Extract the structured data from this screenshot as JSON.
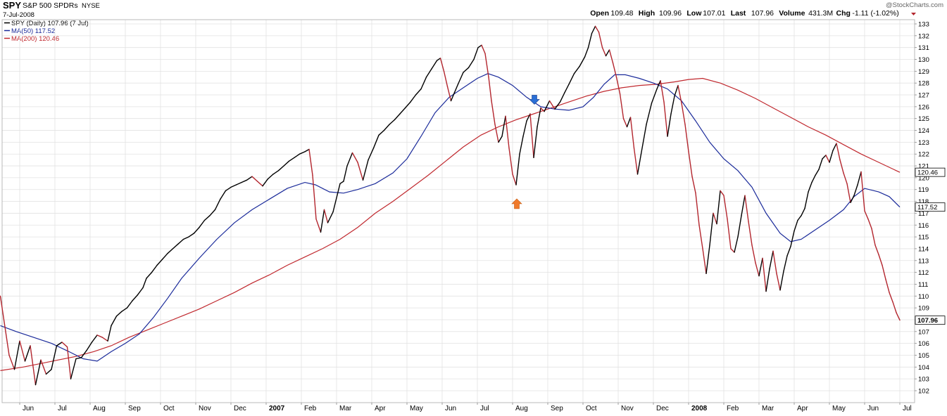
{
  "header": {
    "symbol": "SPY",
    "name": "S&P 500 SPDRs",
    "exchange": "NYSE",
    "date": "7-Jul-2008",
    "credit": "@StockCharts.com",
    "ohlc": [
      {
        "label": "Open",
        "value": "109.48"
      },
      {
        "label": "High",
        "value": "109.96"
      },
      {
        "label": "Low",
        "value": "107.01"
      },
      {
        "label": "Last",
        "value": "107.96"
      },
      {
        "label": "Volume",
        "value": "431.3M"
      },
      {
        "label": "Chg",
        "value": "-1.11 (-1.02%)"
      }
    ]
  },
  "legend": [
    {
      "text": "SPY (Daily) 107.96 (7 Jul)",
      "color": "#000000"
    },
    {
      "text": "MA(50) 117.52",
      "color": "#1a2a9a"
    },
    {
      "text": "MA(200) 120.46",
      "color": "#c0282e"
    }
  ],
  "colors": {
    "up": "#000000",
    "down": "#b3262e",
    "ma50": "#1a2a9a",
    "ma200": "#c0282e",
    "grid": "#e2e2e2",
    "arrow_up": "#f07a2a",
    "arrow_down": "#2a6fd6"
  },
  "chart_data": {
    "type": "line",
    "ylim": [
      101,
      133.5
    ],
    "y_ticks": [
      102,
      103,
      104,
      105,
      106,
      107,
      108,
      109,
      110,
      111,
      112,
      113,
      114,
      115,
      116,
      117,
      118,
      119,
      120,
      121,
      122,
      123,
      124,
      125,
      126,
      127,
      128,
      129,
      130,
      131,
      132,
      133
    ],
    "x_ticks": [
      {
        "label": "Jun",
        "t": 0.4,
        "bold": false
      },
      {
        "label": "Jul",
        "t": 1.4,
        "bold": false
      },
      {
        "label": "Aug",
        "t": 2.4,
        "bold": false
      },
      {
        "label": "Sep",
        "t": 3.4,
        "bold": false
      },
      {
        "label": "Oct",
        "t": 4.4,
        "bold": false
      },
      {
        "label": "Nov",
        "t": 5.4,
        "bold": false
      },
      {
        "label": "Dec",
        "t": 6.4,
        "bold": false
      },
      {
        "label": "2007",
        "t": 7.4,
        "bold": true
      },
      {
        "label": "Feb",
        "t": 8.4,
        "bold": false
      },
      {
        "label": "Mar",
        "t": 9.4,
        "bold": false
      },
      {
        "label": "Apr",
        "t": 10.4,
        "bold": false
      },
      {
        "label": "May",
        "t": 11.4,
        "bold": false
      },
      {
        "label": "Jun",
        "t": 12.4,
        "bold": false
      },
      {
        "label": "Jul",
        "t": 13.4,
        "bold": false
      },
      {
        "label": "Aug",
        "t": 14.4,
        "bold": false
      },
      {
        "label": "Sep",
        "t": 15.4,
        "bold": false
      },
      {
        "label": "Oct",
        "t": 16.4,
        "bold": false
      },
      {
        "label": "Nov",
        "t": 17.4,
        "bold": false
      },
      {
        "label": "Dec",
        "t": 18.4,
        "bold": false
      },
      {
        "label": "2008",
        "t": 19.4,
        "bold": true
      },
      {
        "label": "Feb",
        "t": 20.4,
        "bold": false
      },
      {
        "label": "Mar",
        "t": 21.4,
        "bold": false
      },
      {
        "label": "Apr",
        "t": 22.4,
        "bold": false
      },
      {
        "label": "May",
        "t": 23.4,
        "bold": false
      },
      {
        "label": "Jun",
        "t": 24.4,
        "bold": false
      },
      {
        "label": "Jul",
        "t": 25.4,
        "bold": false
      }
    ],
    "t_range": [
      -0.15,
      25.5
    ],
    "price": [
      [
        -0.15,
        110
      ],
      [
        0.1,
        105
      ],
      [
        0.25,
        103.8
      ],
      [
        0.4,
        106.2
      ],
      [
        0.55,
        104.5
      ],
      [
        0.7,
        105.8
      ],
      [
        0.85,
        102.5
      ],
      [
        1.0,
        104.6
      ],
      [
        1.15,
        103.4
      ],
      [
        1.3,
        103.8
      ],
      [
        1.45,
        105.8
      ],
      [
        1.6,
        106.1
      ],
      [
        1.75,
        105.7
      ],
      [
        1.85,
        103
      ],
      [
        2.0,
        104.7
      ],
      [
        2.15,
        104.8
      ],
      [
        2.3,
        105.4
      ],
      [
        2.45,
        106.1
      ],
      [
        2.6,
        106.7
      ],
      [
        2.75,
        106.5
      ],
      [
        2.9,
        106.2
      ],
      [
        3.0,
        107.5
      ],
      [
        3.15,
        108.3
      ],
      [
        3.3,
        108.7
      ],
      [
        3.45,
        109
      ],
      [
        3.6,
        109.6
      ],
      [
        3.75,
        110.1
      ],
      [
        3.9,
        110.7
      ],
      [
        4.0,
        111.5
      ],
      [
        4.15,
        112
      ],
      [
        4.3,
        112.6
      ],
      [
        4.45,
        113.1
      ],
      [
        4.6,
        113.6
      ],
      [
        4.75,
        114
      ],
      [
        4.9,
        114.4
      ],
      [
        5.05,
        114.8
      ],
      [
        5.2,
        115
      ],
      [
        5.35,
        115.3
      ],
      [
        5.5,
        115.8
      ],
      [
        5.65,
        116.4
      ],
      [
        5.8,
        116.8
      ],
      [
        5.95,
        117.3
      ],
      [
        6.1,
        118.2
      ],
      [
        6.25,
        118.9
      ],
      [
        6.4,
        119.2
      ],
      [
        6.55,
        119.4
      ],
      [
        6.7,
        119.6
      ],
      [
        6.85,
        119.8
      ],
      [
        7.0,
        120.1
      ],
      [
        7.15,
        119.7
      ],
      [
        7.3,
        119.3
      ],
      [
        7.45,
        119.9
      ],
      [
        7.6,
        120.3
      ],
      [
        7.75,
        120.6
      ],
      [
        7.9,
        121
      ],
      [
        8.05,
        121.4
      ],
      [
        8.2,
        121.7
      ],
      [
        8.35,
        122
      ],
      [
        8.5,
        122.2
      ],
      [
        8.62,
        122.4
      ],
      [
        8.72,
        120.2
      ],
      [
        8.82,
        116.5
      ],
      [
        8.95,
        115.4
      ],
      [
        9.05,
        117.3
      ],
      [
        9.15,
        116.2
      ],
      [
        9.3,
        117.1
      ],
      [
        9.5,
        119.5
      ],
      [
        9.6,
        119.7
      ],
      [
        9.7,
        121
      ],
      [
        9.85,
        122.1
      ],
      [
        10.0,
        121.3
      ],
      [
        10.15,
        119.8
      ],
      [
        10.3,
        121.5
      ],
      [
        10.45,
        122.5
      ],
      [
        10.6,
        123.6
      ],
      [
        10.75,
        124
      ],
      [
        10.9,
        124.5
      ],
      [
        11.05,
        124.9
      ],
      [
        11.2,
        125.4
      ],
      [
        11.35,
        125.9
      ],
      [
        11.5,
        126.4
      ],
      [
        11.65,
        127
      ],
      [
        11.8,
        127.5
      ],
      [
        11.95,
        128.5
      ],
      [
        12.1,
        129.2
      ],
      [
        12.25,
        129.9
      ],
      [
        12.35,
        130.1
      ],
      [
        12.45,
        129
      ],
      [
        12.55,
        127.7
      ],
      [
        12.65,
        126.5
      ],
      [
        12.75,
        127.2
      ],
      [
        12.85,
        127.9
      ],
      [
        13.0,
        128.9
      ],
      [
        13.15,
        129.3
      ],
      [
        13.3,
        130
      ],
      [
        13.42,
        131
      ],
      [
        13.52,
        131.2
      ],
      [
        13.62,
        130.5
      ],
      [
        13.72,
        128.5
      ],
      [
        13.8,
        126.5
      ],
      [
        13.9,
        124.5
      ],
      [
        14.0,
        123
      ],
      [
        14.1,
        123.5
      ],
      [
        14.2,
        125.2
      ],
      [
        14.3,
        122.5
      ],
      [
        14.4,
        120.3
      ],
      [
        14.5,
        119.4
      ],
      [
        14.6,
        122
      ],
      [
        14.7,
        123.5
      ],
      [
        14.8,
        124.8
      ],
      [
        14.9,
        125.4
      ],
      [
        15.0,
        121.7
      ],
      [
        15.1,
        124.3
      ],
      [
        15.2,
        125.9
      ],
      [
        15.3,
        125.6
      ],
      [
        15.45,
        126.5
      ],
      [
        15.6,
        125.8
      ],
      [
        15.75,
        126.4
      ],
      [
        15.88,
        127.2
      ],
      [
        16.0,
        127.9
      ],
      [
        16.15,
        128.8
      ],
      [
        16.3,
        129.4
      ],
      [
        16.45,
        130.2
      ],
      [
        16.55,
        131
      ],
      [
        16.65,
        132.2
      ],
      [
        16.75,
        132.8
      ],
      [
        16.85,
        132.3
      ],
      [
        16.95,
        131
      ],
      [
        17.05,
        130.3
      ],
      [
        17.15,
        130.8
      ],
      [
        17.25,
        129.7
      ],
      [
        17.35,
        128.5
      ],
      [
        17.45,
        127.1
      ],
      [
        17.55,
        125
      ],
      [
        17.65,
        124.3
      ],
      [
        17.75,
        125.1
      ],
      [
        17.85,
        122.5
      ],
      [
        17.95,
        120.3
      ],
      [
        18.05,
        122
      ],
      [
        18.2,
        124.5
      ],
      [
        18.35,
        126.3
      ],
      [
        18.5,
        127.5
      ],
      [
        18.6,
        128.2
      ],
      [
        18.7,
        126.4
      ],
      [
        18.8,
        123.5
      ],
      [
        18.9,
        125.4
      ],
      [
        19.0,
        126.9
      ],
      [
        19.1,
        127.8
      ],
      [
        19.2,
        126.3
      ],
      [
        19.3,
        124.5
      ],
      [
        19.4,
        122.2
      ],
      [
        19.5,
        120.1
      ],
      [
        19.6,
        118.7
      ],
      [
        19.7,
        116
      ],
      [
        19.8,
        114
      ],
      [
        19.9,
        111.9
      ],
      [
        20.0,
        114.3
      ],
      [
        20.1,
        117
      ],
      [
        20.2,
        116.1
      ],
      [
        20.3,
        118.9
      ],
      [
        20.4,
        118.5
      ],
      [
        20.5,
        116.5
      ],
      [
        20.6,
        114
      ],
      [
        20.7,
        113.7
      ],
      [
        20.8,
        115
      ],
      [
        20.9,
        116.8
      ],
      [
        21.0,
        118.5
      ],
      [
        21.1,
        116.3
      ],
      [
        21.2,
        114.3
      ],
      [
        21.3,
        112.8
      ],
      [
        21.4,
        111.7
      ],
      [
        21.5,
        113.2
      ],
      [
        21.6,
        110.4
      ],
      [
        21.7,
        112.3
      ],
      [
        21.8,
        113.8
      ],
      [
        21.9,
        111.9
      ],
      [
        22.0,
        110.5
      ],
      [
        22.1,
        112.1
      ],
      [
        22.2,
        113.4
      ],
      [
        22.3,
        114.2
      ],
      [
        22.4,
        115.5
      ],
      [
        22.5,
        116.4
      ],
      [
        22.6,
        116.8
      ],
      [
        22.7,
        117.4
      ],
      [
        22.8,
        118.8
      ],
      [
        22.9,
        119.6
      ],
      [
        23.0,
        120.2
      ],
      [
        23.1,
        120.7
      ],
      [
        23.2,
        121.6
      ],
      [
        23.3,
        121.9
      ],
      [
        23.4,
        121.3
      ],
      [
        23.5,
        122.3
      ],
      [
        23.6,
        122.9
      ],
      [
        23.7,
        121.5
      ],
      [
        23.8,
        120.4
      ],
      [
        23.9,
        119.5
      ],
      [
        24.0,
        117.9
      ],
      [
        24.1,
        118.5
      ],
      [
        24.2,
        119.4
      ],
      [
        24.3,
        120.5
      ],
      [
        24.4,
        117.2
      ],
      [
        24.5,
        116.5
      ],
      [
        24.6,
        115.7
      ],
      [
        24.7,
        114.3
      ],
      [
        24.8,
        113.5
      ],
      [
        24.9,
        112.6
      ],
      [
        25.0,
        111.4
      ],
      [
        25.1,
        110.3
      ],
      [
        25.2,
        109.5
      ],
      [
        25.3,
        108.6
      ],
      [
        25.4,
        107.96
      ]
    ],
    "ma50": [
      [
        -0.15,
        107.5
      ],
      [
        0.3,
        107
      ],
      [
        0.8,
        106.5
      ],
      [
        1.3,
        106
      ],
      [
        1.8,
        105.3
      ],
      [
        2.2,
        104.7
      ],
      [
        2.6,
        104.5
      ],
      [
        3.0,
        105.3
      ],
      [
        3.4,
        106
      ],
      [
        3.8,
        106.8
      ],
      [
        4.2,
        108.2
      ],
      [
        4.6,
        109.8
      ],
      [
        5.0,
        111.5
      ],
      [
        5.5,
        113.2
      ],
      [
        6.0,
        114.8
      ],
      [
        6.5,
        116.2
      ],
      [
        7.0,
        117.3
      ],
      [
        7.5,
        118.2
      ],
      [
        8.0,
        119.1
      ],
      [
        8.5,
        119.6
      ],
      [
        8.8,
        119.4
      ],
      [
        9.2,
        118.8
      ],
      [
        9.6,
        118.7
      ],
      [
        10.0,
        119.0
      ],
      [
        10.5,
        119.5
      ],
      [
        11.0,
        120.4
      ],
      [
        11.4,
        121.6
      ],
      [
        11.8,
        123.5
      ],
      [
        12.2,
        125.5
      ],
      [
        12.6,
        126.8
      ],
      [
        13.0,
        127.6
      ],
      [
        13.4,
        128.4
      ],
      [
        13.7,
        128.8
      ],
      [
        14.0,
        128.5
      ],
      [
        14.4,
        127.8
      ],
      [
        14.8,
        126.8
      ],
      [
        15.2,
        126.0
      ],
      [
        15.6,
        125.8
      ],
      [
        16.0,
        125.7
      ],
      [
        16.4,
        126.0
      ],
      [
        16.7,
        126.8
      ],
      [
        17.0,
        127.9
      ],
      [
        17.3,
        128.7
      ],
      [
        17.6,
        128.7
      ],
      [
        18.0,
        128.4
      ],
      [
        18.4,
        128.0
      ],
      [
        18.8,
        127.5
      ],
      [
        19.2,
        126.5
      ],
      [
        19.6,
        124.8
      ],
      [
        20.0,
        123.0
      ],
      [
        20.4,
        121.6
      ],
      [
        20.8,
        120.6
      ],
      [
        21.2,
        119.2
      ],
      [
        21.6,
        117.0
      ],
      [
        22.0,
        115.3
      ],
      [
        22.3,
        114.6
      ],
      [
        22.6,
        114.8
      ],
      [
        23.0,
        115.6
      ],
      [
        23.4,
        116.4
      ],
      [
        23.8,
        117.3
      ],
      [
        24.1,
        118.4
      ],
      [
        24.4,
        119.1
      ],
      [
        24.8,
        118.8
      ],
      [
        25.1,
        118.4
      ],
      [
        25.4,
        117.52
      ]
    ],
    "ma200": [
      [
        -0.15,
        103.7
      ],
      [
        0.5,
        104
      ],
      [
        1.0,
        104.3
      ],
      [
        1.5,
        104.6
      ],
      [
        2.0,
        104.9
      ],
      [
        2.5,
        105.3
      ],
      [
        3.0,
        105.8
      ],
      [
        3.5,
        106.5
      ],
      [
        4.0,
        107.1
      ],
      [
        4.5,
        107.7
      ],
      [
        5.0,
        108.3
      ],
      [
        5.5,
        108.9
      ],
      [
        6.0,
        109.6
      ],
      [
        6.5,
        110.3
      ],
      [
        7.0,
        111.1
      ],
      [
        7.5,
        111.8
      ],
      [
        8.0,
        112.6
      ],
      [
        8.5,
        113.3
      ],
      [
        9.0,
        114.0
      ],
      [
        9.5,
        114.8
      ],
      [
        10.0,
        115.8
      ],
      [
        10.5,
        117.0
      ],
      [
        11.0,
        118.0
      ],
      [
        11.5,
        119.1
      ],
      [
        12.0,
        120.2
      ],
      [
        12.5,
        121.4
      ],
      [
        13.0,
        122.6
      ],
      [
        13.5,
        123.6
      ],
      [
        14.0,
        124.3
      ],
      [
        14.5,
        124.9
      ],
      [
        15.0,
        125.4
      ],
      [
        15.5,
        125.9
      ],
      [
        16.0,
        126.4
      ],
      [
        16.5,
        126.9
      ],
      [
        17.0,
        127.3
      ],
      [
        17.5,
        127.6
      ],
      [
        18.0,
        127.8
      ],
      [
        18.5,
        127.9
      ],
      [
        19.0,
        128.1
      ],
      [
        19.4,
        128.3
      ],
      [
        19.8,
        128.4
      ],
      [
        20.3,
        128.0
      ],
      [
        20.8,
        127.4
      ],
      [
        21.3,
        126.7
      ],
      [
        21.8,
        125.9
      ],
      [
        22.3,
        125.1
      ],
      [
        22.8,
        124.3
      ],
      [
        23.3,
        123.6
      ],
      [
        23.8,
        122.8
      ],
      [
        24.3,
        122.0
      ],
      [
        24.8,
        121.3
      ],
      [
        25.4,
        120.46
      ]
    ],
    "markers": [
      {
        "type": "arrow-down",
        "t": 15.02,
        "y": 126.5
      },
      {
        "type": "arrow-up",
        "t": 14.52,
        "y": 117.8
      }
    ],
    "last_labels": [
      {
        "value": "120.46",
        "y": 120.46
      },
      {
        "value": "117.52",
        "y": 117.52
      },
      {
        "value": "107.96",
        "y": 107.96,
        "bold": true
      }
    ]
  }
}
